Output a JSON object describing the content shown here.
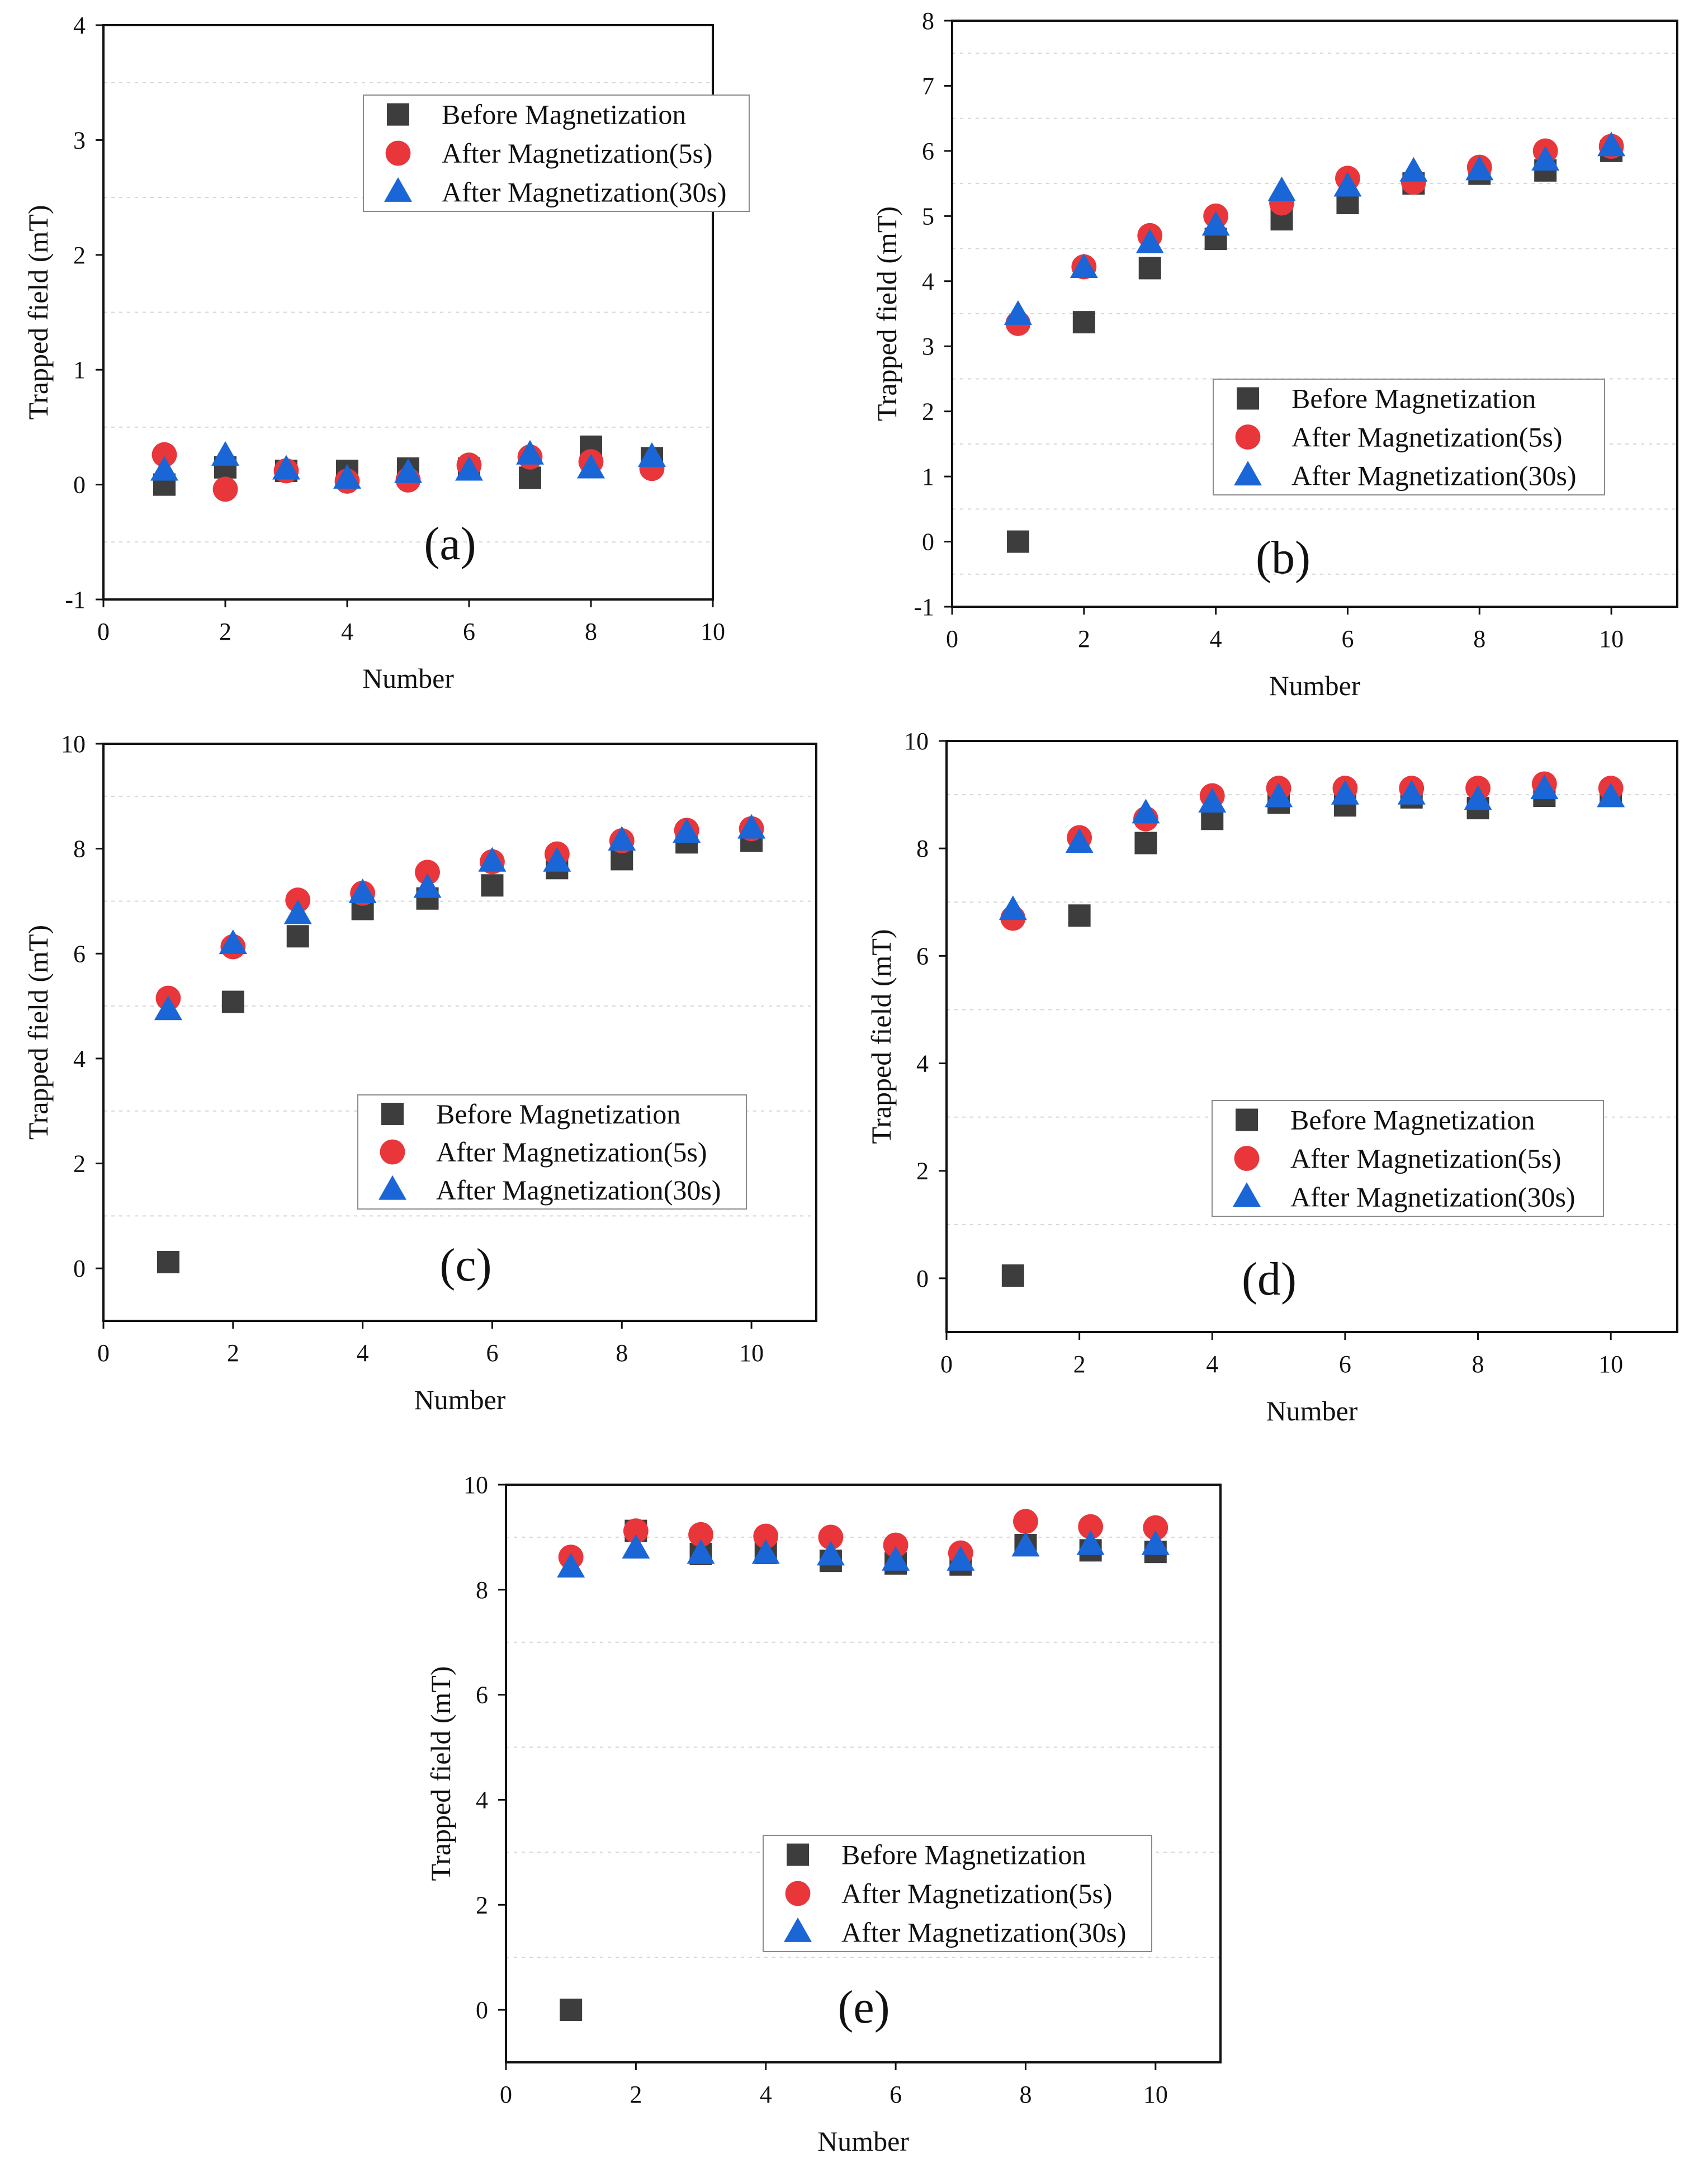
{
  "figure": {
    "colors": {
      "before": "#3d3d3d",
      "after5": "#e8363b",
      "after30": "#1a66d6",
      "axis": "#111111",
      "grid": "#d6d6d6"
    },
    "legend_labels": [
      "Before Magnetization",
      "After Magnetization(5s)",
      "After Magnetization(30s)"
    ],
    "xlabel": "Number",
    "ylabel": "Trapped field (mT)"
  },
  "chart_data": [
    {
      "type": "scatter",
      "panel_label": "(a)",
      "xlabel": "Number",
      "ylabel": "Trapped field (mT)",
      "xlim": [
        0,
        10
      ],
      "ylim": [
        -1,
        4
      ],
      "xticks": [
        0,
        2,
        4,
        6,
        8,
        10
      ],
      "yticks": [
        -1,
        0,
        1,
        2,
        3,
        4
      ],
      "grid": true,
      "legend_position": "top-right",
      "series": [
        {
          "name": "Before Magnetization",
          "marker": "square",
          "x": [
            1,
            2,
            3,
            4,
            5,
            6,
            7,
            8,
            9
          ],
          "y": [
            0.0,
            0.15,
            0.12,
            0.12,
            0.14,
            0.14,
            0.06,
            0.33,
            0.23
          ]
        },
        {
          "name": "After Magnetization(5s)",
          "marker": "circle",
          "x": [
            1,
            2,
            3,
            4,
            5,
            6,
            7,
            8,
            9
          ],
          "y": [
            0.26,
            -0.04,
            0.12,
            0.03,
            0.04,
            0.17,
            0.24,
            0.2,
            0.14
          ]
        },
        {
          "name": "After Magnetization(30s)",
          "marker": "triangle",
          "x": [
            1,
            2,
            3,
            4,
            5,
            6,
            7,
            8,
            9
          ],
          "y": [
            0.12,
            0.25,
            0.13,
            0.05,
            0.1,
            0.12,
            0.26,
            0.14,
            0.24
          ]
        }
      ]
    },
    {
      "type": "scatter",
      "panel_label": "(b)",
      "xlabel": "Number",
      "ylabel": "Trapped field (mT)",
      "xlim": [
        0,
        11
      ],
      "ylim": [
        -1,
        8
      ],
      "xticks": [
        0,
        2,
        4,
        6,
        8,
        10
      ],
      "yticks": [
        -1,
        0,
        1,
        2,
        3,
        4,
        5,
        6,
        7,
        8
      ],
      "grid": true,
      "legend_position": "bottom-right",
      "series": [
        {
          "name": "Before Magnetization",
          "marker": "square",
          "x": [
            1,
            2,
            3,
            4,
            5,
            6,
            7,
            8,
            9,
            10
          ],
          "y": [
            0.0,
            3.37,
            4.2,
            4.65,
            4.95,
            5.2,
            5.5,
            5.65,
            5.7,
            6.0
          ]
        },
        {
          "name": "After Magnetization(5s)",
          "marker": "circle",
          "x": [
            1,
            2,
            3,
            4,
            5,
            6,
            7,
            8,
            9,
            10
          ],
          "y": [
            3.35,
            4.22,
            4.7,
            5.0,
            5.2,
            5.58,
            5.52,
            5.75,
            6.0,
            6.07
          ]
        },
        {
          "name": "After Magnetization(30s)",
          "marker": "triangle",
          "x": [
            1,
            2,
            3,
            4,
            5,
            6,
            7,
            8,
            9,
            10
          ],
          "y": [
            3.48,
            4.2,
            4.58,
            4.85,
            5.38,
            5.45,
            5.68,
            5.7,
            5.85,
            6.07
          ]
        }
      ]
    },
    {
      "type": "scatter",
      "panel_label": "(c)",
      "xlabel": "Number",
      "ylabel": "Trapped field (mT)",
      "xlim": [
        0,
        11
      ],
      "ylim": [
        -1,
        10
      ],
      "xticks": [
        0,
        2,
        4,
        6,
        8,
        10
      ],
      "yticks": [
        0,
        2,
        4,
        6,
        8,
        10
      ],
      "grid": true,
      "legend_position": "bottom-right",
      "series": [
        {
          "name": "Before Magnetization",
          "marker": "square",
          "x": [
            1,
            2,
            3,
            4,
            5,
            6,
            7,
            8,
            9,
            10
          ],
          "y": [
            0.12,
            5.08,
            6.33,
            6.85,
            7.05,
            7.3,
            7.63,
            7.8,
            8.12,
            8.15
          ]
        },
        {
          "name": "After Magnetization(5s)",
          "marker": "circle",
          "x": [
            1,
            2,
            3,
            4,
            5,
            6,
            7,
            8,
            9,
            10
          ],
          "y": [
            5.15,
            6.13,
            7.02,
            7.15,
            7.55,
            7.75,
            7.9,
            8.15,
            8.35,
            8.38
          ]
        },
        {
          "name": "After Magnetization(30s)",
          "marker": "triangle",
          "x": [
            1,
            2,
            3,
            4,
            5,
            6,
            7,
            8,
            9,
            10
          ],
          "y": [
            4.92,
            6.18,
            6.75,
            7.15,
            7.25,
            7.75,
            7.75,
            8.15,
            8.3,
            8.38
          ]
        }
      ]
    },
    {
      "type": "scatter",
      "panel_label": "(d)",
      "xlabel": "Number",
      "ylabel": "Trapped field (mT)",
      "xlim": [
        0,
        11
      ],
      "ylim": [
        -1,
        10
      ],
      "xticks": [
        0,
        2,
        4,
        6,
        8,
        10
      ],
      "yticks": [
        0,
        2,
        4,
        6,
        8,
        10
      ],
      "grid": true,
      "legend_position": "bottom-right",
      "series": [
        {
          "name": "Before Magnetization",
          "marker": "square",
          "x": [
            1,
            2,
            3,
            4,
            5,
            6,
            7,
            8,
            9,
            10
          ],
          "y": [
            0.05,
            6.75,
            8.1,
            8.55,
            8.85,
            8.8,
            8.95,
            8.75,
            8.98,
            9.0
          ]
        },
        {
          "name": "After Magnetization(5s)",
          "marker": "circle",
          "x": [
            1,
            2,
            3,
            4,
            5,
            6,
            7,
            8,
            9,
            10
          ],
          "y": [
            6.7,
            8.2,
            8.55,
            8.98,
            9.12,
            9.12,
            9.12,
            9.12,
            9.2,
            9.12
          ]
        },
        {
          "name": "After Magnetization(30s)",
          "marker": "triangle",
          "x": [
            1,
            2,
            3,
            4,
            5,
            6,
            7,
            8,
            9,
            10
          ],
          "y": [
            6.85,
            8.1,
            8.65,
            8.85,
            8.95,
            9.0,
            9.0,
            8.9,
            9.1,
            8.95
          ]
        }
      ]
    },
    {
      "type": "scatter",
      "panel_label": "(e)",
      "xlabel": "Number",
      "ylabel": "Trapped field (mT)",
      "xlim": [
        0,
        11
      ],
      "ylim": [
        -1,
        10
      ],
      "xticks": [
        0,
        2,
        4,
        6,
        8,
        10
      ],
      "yticks": [
        0,
        2,
        4,
        6,
        8,
        10
      ],
      "grid": true,
      "legend_position": "bottom-center",
      "series": [
        {
          "name": "Before Magnetization",
          "marker": "square",
          "x": [
            1,
            2,
            3,
            4,
            5,
            6,
            7,
            8,
            9,
            10
          ],
          "y": [
            0.0,
            9.12,
            8.68,
            8.7,
            8.55,
            8.5,
            8.48,
            8.85,
            8.75,
            8.72
          ]
        },
        {
          "name": "After Magnetization(5s)",
          "marker": "circle",
          "x": [
            1,
            2,
            3,
            4,
            5,
            6,
            7,
            8,
            9,
            10
          ],
          "y": [
            8.62,
            9.12,
            9.05,
            9.02,
            9.0,
            8.85,
            8.7,
            9.3,
            9.2,
            9.18
          ]
        },
        {
          "name": "After Magnetization(30s)",
          "marker": "triangle",
          "x": [
            1,
            2,
            3,
            4,
            5,
            6,
            7,
            8,
            9,
            10
          ],
          "y": [
            8.42,
            8.78,
            8.68,
            8.68,
            8.65,
            8.55,
            8.55,
            8.82,
            8.85,
            8.85
          ]
        }
      ]
    }
  ]
}
